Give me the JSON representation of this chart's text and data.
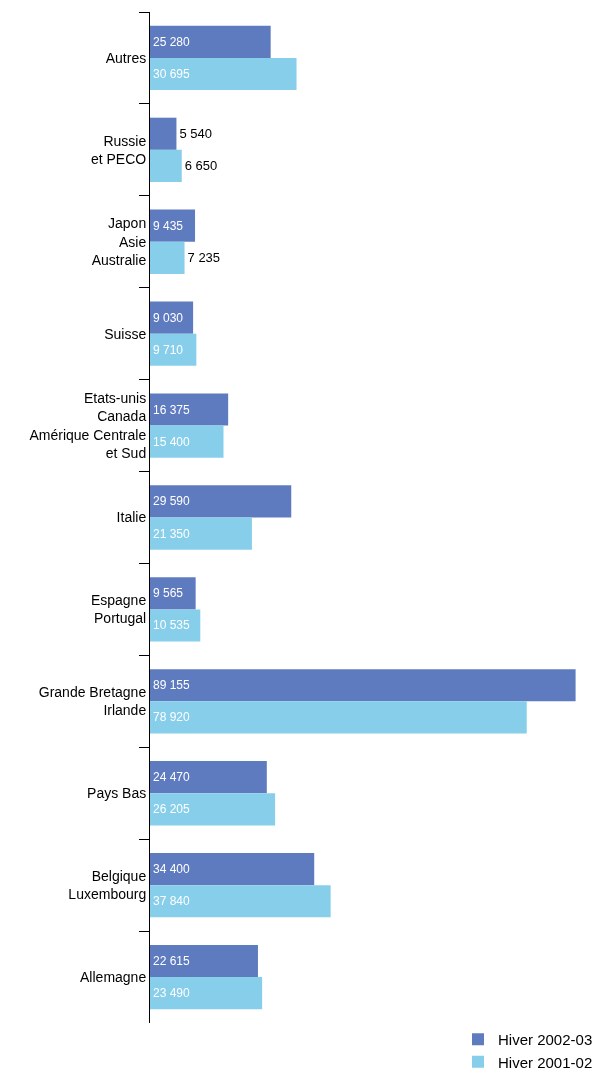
{
  "chart_data": {
    "type": "bar",
    "orientation": "horizontal",
    "categories": [
      "Autres",
      "Russie\net PECO",
      "Japon\nAsie\nAustralie",
      "Suisse",
      "Etats-unis\nCanada\nAmérique Centrale\net Sud",
      "Italie",
      "Espagne\nPortugal",
      "Grande Bretagne\nIrlande",
      "Pays Bas",
      "Belgique\nLuxembourg",
      "Allemagne"
    ],
    "series": [
      {
        "name": "Hiver 2002-03",
        "color": "#5f7bbf",
        "values": [
          25280,
          5540,
          9435,
          9030,
          16375,
          29590,
          9565,
          89155,
          24470,
          34400,
          22615
        ],
        "value_labels": [
          "25 280",
          "5 540",
          "9 435",
          "9 030",
          "16 375",
          "29 590",
          "9 565",
          "89 155",
          "24 470",
          "34 400",
          "22 615"
        ]
      },
      {
        "name": "Hiver 2001-02",
        "color": "#87ceeb",
        "values": [
          30695,
          6650,
          7235,
          9710,
          15400,
          21350,
          10535,
          78920,
          26205,
          37840,
          23490
        ],
        "value_labels": [
          "30 695",
          "6 650",
          "7 235",
          "9 710",
          "15 400",
          "21 350",
          "10 535",
          "78 920",
          "26 205",
          "37 840",
          "23 490"
        ]
      }
    ],
    "legend": "bottom right",
    "tick_labels": "y"
  }
}
